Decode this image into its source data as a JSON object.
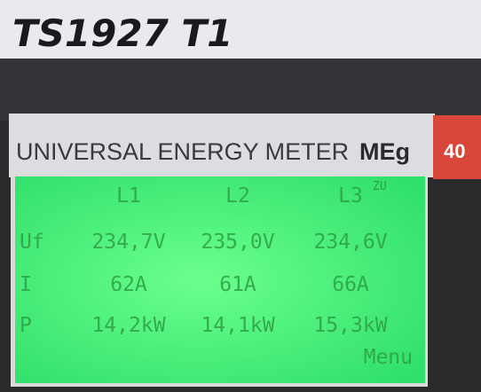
{
  "label": {
    "text": "TS1927 T1"
  },
  "panel": {
    "title": "UNIVERSAL ENERGY METER",
    "brand": "MEg",
    "badge": "40"
  },
  "display": {
    "header": [
      "L1",
      "L2",
      "L3"
    ],
    "header_note": "ZU",
    "rows": [
      {
        "label": "Uf",
        "cells": [
          "234,7V",
          "235,0V",
          "234,6V"
        ]
      },
      {
        "label": "I",
        "cells": [
          "62A",
          "61A",
          "66A"
        ]
      },
      {
        "label": "P",
        "cells": [
          "14,2kW",
          "14,1kW",
          "15,3kW"
        ]
      }
    ],
    "menu": "Menu"
  }
}
